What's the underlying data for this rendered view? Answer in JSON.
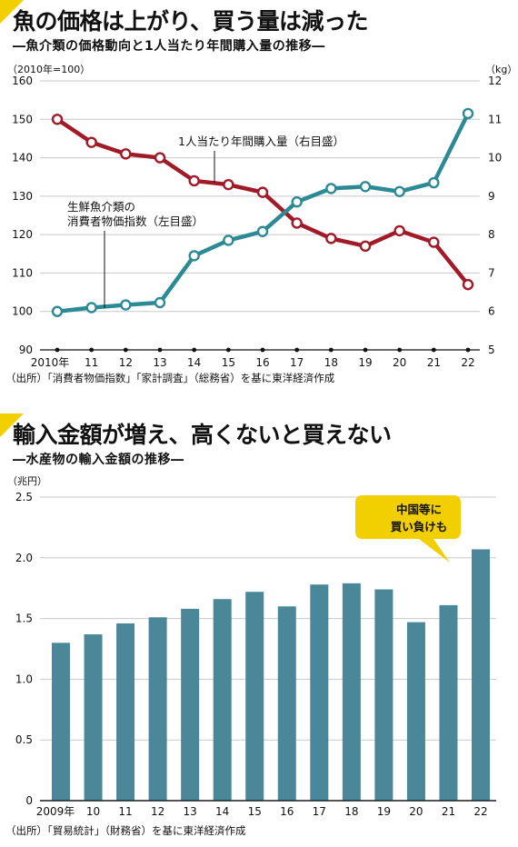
{
  "chart_data": [
    {
      "type": "line",
      "title": "魚の価格は上がり、買う量は減った",
      "subtitle": "―魚介類の価格動向と1人当たり年間購入量の推移―",
      "left_unit": "（2010年=100）",
      "right_unit": "（kg）",
      "categories": [
        "2010年",
        "11",
        "12",
        "13",
        "14",
        "15",
        "16",
        "17",
        "18",
        "19",
        "20",
        "21",
        "22"
      ],
      "left_axis": {
        "ylim": [
          90,
          160
        ],
        "ticks": [
          "90",
          "100",
          "110",
          "120",
          "130",
          "140",
          "150",
          "160"
        ]
      },
      "right_axis": {
        "ylim": [
          5,
          12
        ],
        "ticks": [
          "5",
          "6",
          "7",
          "8",
          "9",
          "10",
          "11",
          "12"
        ]
      },
      "series": [
        {
          "name": "1人当たり年間購入量（右目盛）",
          "axis": "right",
          "color": "#a01a27",
          "values": [
            11.0,
            10.4,
            10.1,
            10.0,
            9.4,
            9.3,
            9.1,
            8.3,
            7.9,
            7.7,
            8.1,
            7.8,
            6.7
          ]
        },
        {
          "name_line1": "生鮮魚介類の",
          "name_line2": "消費者物価指数（左目盛）",
          "axis": "left",
          "color": "#2b8a94",
          "values": [
            100.0,
            101.0,
            101.7,
            102.3,
            114.5,
            118.5,
            120.8,
            128.5,
            132.0,
            132.5,
            131.2,
            133.5,
            151.5
          ]
        }
      ],
      "source": "（出所）「消費者物価指数」「家計調査」（総務省）を基に東洋経済作成"
    },
    {
      "type": "bar",
      "title": "輸入金額が増え、高くないと買えない",
      "subtitle": "―水産物の輸入金額の推移―",
      "ylabel": "（兆円）",
      "categories": [
        "2009年",
        "10",
        "11",
        "12",
        "13",
        "14",
        "15",
        "16",
        "17",
        "18",
        "19",
        "20",
        "21",
        "22"
      ],
      "values": [
        1.3,
        1.37,
        1.46,
        1.51,
        1.58,
        1.66,
        1.72,
        1.6,
        1.78,
        1.79,
        1.74,
        1.47,
        1.61,
        2.07
      ],
      "ylim": [
        0,
        2.5
      ],
      "ticks": [
        "0",
        "0.5",
        "1.0",
        "1.5",
        "2.0",
        "2.5"
      ],
      "bar_color": "#4a8798",
      "callout": {
        "line1": "中国等に",
        "line2": "買い負けも",
        "color": "#f2cf00"
      },
      "source": "（出所）「貿易統計」（財務省）を基に東洋経済作成"
    }
  ]
}
